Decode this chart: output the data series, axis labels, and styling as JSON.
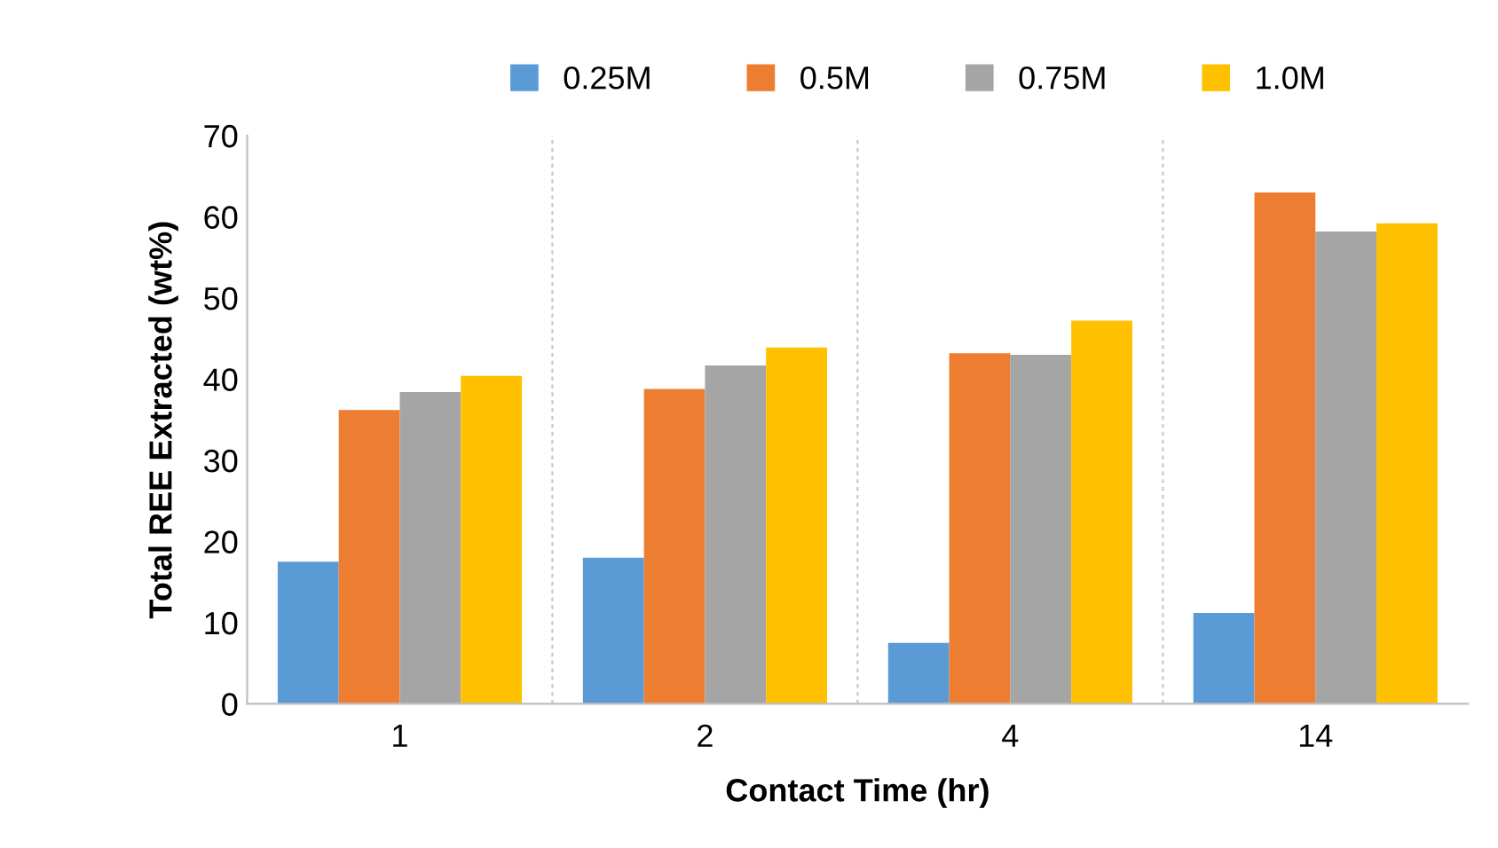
{
  "chart_data": {
    "type": "bar",
    "xlabel": "Contact Time (hr)",
    "ylabel": "Total REE Extracted (wt%)",
    "categories": [
      "1",
      "2",
      "4",
      "14"
    ],
    "series": [
      {
        "name": "0.25M",
        "color": "#5b9bd5",
        "values": [
          17.5,
          18,
          7.5,
          11.2
        ]
      },
      {
        "name": "0.5M",
        "color": "#ed7d31",
        "values": [
          36.2,
          38.8,
          43.2,
          63
        ]
      },
      {
        "name": "0.75M",
        "color": "#a5a5a5",
        "values": [
          38.4,
          41.7,
          43,
          58.2
        ]
      },
      {
        "name": "1.0M",
        "color": "#ffc000",
        "values": [
          40.4,
          43.9,
          47.2,
          59.2
        ]
      }
    ],
    "ylim": [
      0,
      70
    ],
    "yticks": [
      0,
      10,
      20,
      30,
      40,
      50,
      60,
      70
    ],
    "grid": "x",
    "legend": "top"
  }
}
